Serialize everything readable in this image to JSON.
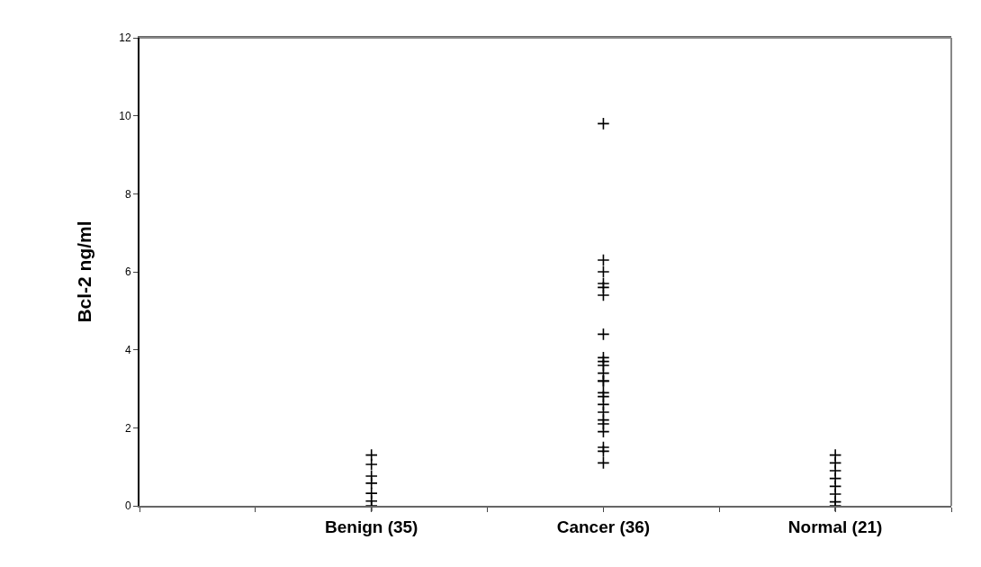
{
  "chart_data": {
    "type": "scatter",
    "ylabel": "Bcl-2 ng/ml",
    "marker": "cross",
    "grid": false,
    "categories": [
      null,
      null,
      "Benign (35)",
      null,
      "Cancer (36)",
      null,
      "Normal (21)",
      null
    ],
    "ylim": [
      0,
      12
    ],
    "yticks": [
      0,
      2,
      4,
      6,
      8,
      10,
      12
    ],
    "series": [
      {
        "color": "#000000",
        "x": [
          "Benign (35)",
          "Benign (35)",
          "Benign (35)",
          "Benign (35)",
          "Benign (35)",
          "Benign (35)",
          "Benign (35)",
          "Cancer (36)",
          "Cancer (36)",
          "Cancer (36)",
          "Cancer (36)",
          "Cancer (36)",
          "Cancer (36)",
          "Cancer (36)",
          "Cancer (36)",
          "Cancer (36)",
          "Cancer (36)",
          "Cancer (36)",
          "Cancer (36)",
          "Cancer (36)",
          "Cancer (36)",
          "Cancer (36)",
          "Cancer (36)",
          "Cancer (36)",
          "Cancer (36)",
          "Cancer (36)",
          "Cancer (36)",
          "Cancer (36)",
          "Cancer (36)",
          "Cancer (36)",
          "Normal (21)",
          "Normal (21)",
          "Normal (21)",
          "Normal (21)",
          "Normal (21)",
          "Normal (21)",
          "Normal (21)",
          "Normal (21)"
        ],
        "values": [
          1.3,
          1.06,
          0.76,
          0.58,
          0.32,
          0.12,
          0,
          9.8,
          6.3,
          6.0,
          5.7,
          5.6,
          5.4,
          4.4,
          3.8,
          3.7,
          3.6,
          3.4,
          3.2,
          3.2,
          2.9,
          2.8,
          2.6,
          2.4,
          2.2,
          2.1,
          1.9,
          1.5,
          1.4,
          1.1,
          1.3,
          1.1,
          0.9,
          0.7,
          0.5,
          0.3,
          0.1,
          0
        ]
      }
    ]
  }
}
